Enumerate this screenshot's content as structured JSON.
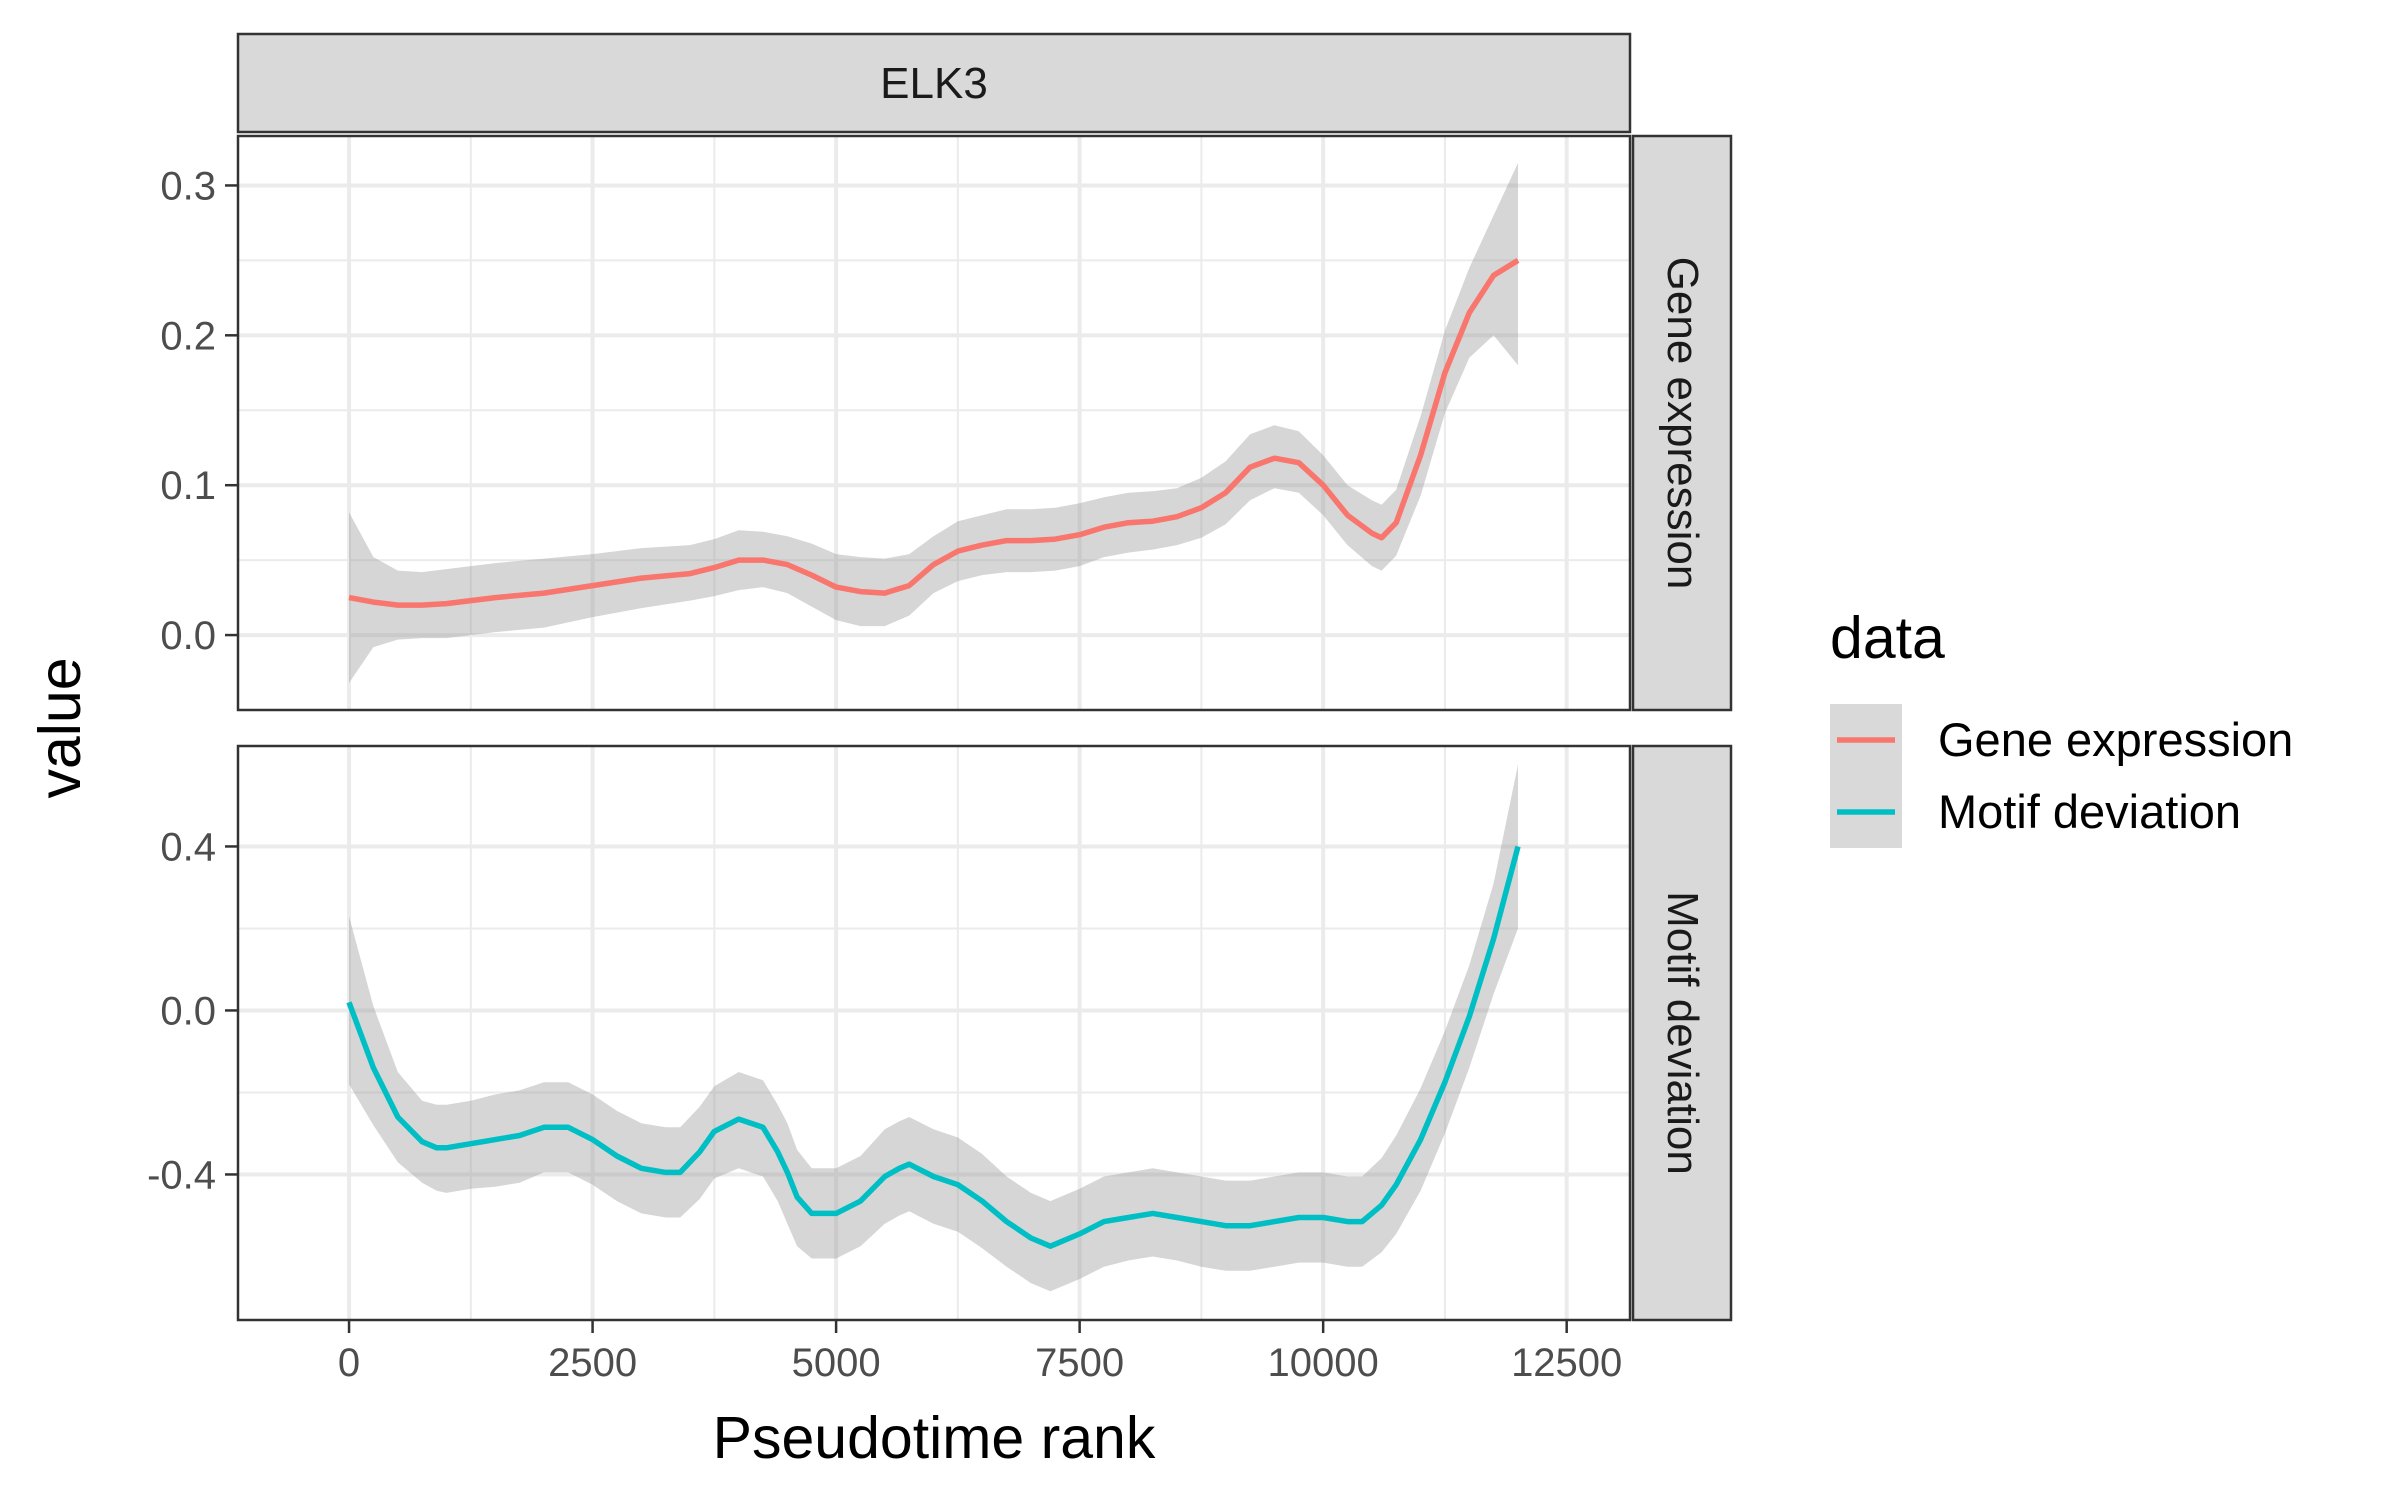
{
  "chart_data": {
    "type": "line",
    "title": "ELK3",
    "xlabel": "Pseudotime rank",
    "ylabel": "value",
    "xlim": [
      -1140,
      13150
    ],
    "xticks": [
      0,
      2500,
      5000,
      7500,
      10000,
      12500
    ],
    "xtick_labels": [
      "0",
      "2500",
      "5000",
      "7500",
      "10000",
      "12500"
    ],
    "grid": true,
    "legend": {
      "title": "data",
      "position": "right",
      "entries": [
        {
          "label": "Gene expression",
          "color": "#F8766D"
        },
        {
          "label": "Motif deviation",
          "color": "#00BFC4"
        }
      ]
    },
    "panels": [
      {
        "strip_label": "Gene expression",
        "color": "#F8766D",
        "ylim": [
          -0.05,
          0.333
        ],
        "yticks": [
          0.0,
          0.1,
          0.2,
          0.3
        ],
        "ytick_labels": [
          "0.0",
          "0.1",
          "0.2",
          "0.3"
        ],
        "series": {
          "name": "Gene expression",
          "x": [
            0,
            250,
            500,
            750,
            1000,
            1500,
            2000,
            2500,
            3000,
            3500,
            3750,
            4000,
            4250,
            4500,
            4750,
            5000,
            5250,
            5500,
            5750,
            6000,
            6250,
            6500,
            6750,
            7000,
            7250,
            7500,
            7750,
            8000,
            8250,
            8500,
            8750,
            9000,
            9250,
            9500,
            9750,
            10000,
            10250,
            10500,
            10600,
            10750,
            11000,
            11250,
            11500,
            11750,
            12000
          ],
          "y": [
            0.025,
            0.022,
            0.02,
            0.02,
            0.021,
            0.025,
            0.028,
            0.033,
            0.038,
            0.041,
            0.045,
            0.05,
            0.05,
            0.047,
            0.04,
            0.032,
            0.029,
            0.028,
            0.033,
            0.047,
            0.056,
            0.06,
            0.063,
            0.063,
            0.064,
            0.067,
            0.072,
            0.075,
            0.076,
            0.079,
            0.085,
            0.095,
            0.112,
            0.118,
            0.115,
            0.1,
            0.08,
            0.068,
            0.065,
            0.075,
            0.12,
            0.175,
            0.215,
            0.24,
            0.25
          ],
          "ci_lower": [
            -0.032,
            -0.008,
            -0.003,
            -0.002,
            -0.002,
            0.002,
            0.005,
            0.012,
            0.018,
            0.023,
            0.026,
            0.03,
            0.032,
            0.028,
            0.019,
            0.01,
            0.006,
            0.006,
            0.013,
            0.028,
            0.036,
            0.04,
            0.042,
            0.042,
            0.043,
            0.046,
            0.052,
            0.055,
            0.057,
            0.06,
            0.065,
            0.074,
            0.09,
            0.098,
            0.095,
            0.08,
            0.06,
            0.046,
            0.043,
            0.053,
            0.093,
            0.148,
            0.185,
            0.2,
            0.18
          ],
          "ci_upper": [
            0.082,
            0.052,
            0.043,
            0.042,
            0.044,
            0.048,
            0.051,
            0.054,
            0.058,
            0.06,
            0.064,
            0.07,
            0.069,
            0.066,
            0.061,
            0.054,
            0.052,
            0.051,
            0.054,
            0.066,
            0.076,
            0.08,
            0.084,
            0.084,
            0.085,
            0.088,
            0.092,
            0.095,
            0.096,
            0.098,
            0.105,
            0.116,
            0.134,
            0.14,
            0.136,
            0.12,
            0.1,
            0.09,
            0.087,
            0.097,
            0.146,
            0.203,
            0.245,
            0.28,
            0.315
          ]
        }
      },
      {
        "strip_label": "Motif deviation",
        "color": "#00BFC4",
        "ylim": [
          -0.755,
          0.645
        ],
        "yticks": [
          -0.4,
          0.0,
          0.4
        ],
        "ytick_labels": [
          "-0.4",
          "0.0",
          "0.4"
        ],
        "series": {
          "name": "Motif deviation",
          "x": [
            0,
            250,
            500,
            750,
            900,
            1000,
            1250,
            1500,
            1750,
            2000,
            2250,
            2500,
            2750,
            3000,
            3250,
            3400,
            3600,
            3750,
            4000,
            4250,
            4400,
            4500,
            4600,
            4750,
            5000,
            5250,
            5500,
            5650,
            5750,
            6000,
            6250,
            6500,
            6750,
            7000,
            7200,
            7500,
            7750,
            8000,
            8250,
            8500,
            8750,
            9000,
            9250,
            9500,
            9750,
            10000,
            10250,
            10400,
            10600,
            10750,
            11000,
            11250,
            11500,
            11750,
            12000
          ],
          "y": [
            0.02,
            -0.14,
            -0.26,
            -0.32,
            -0.335,
            -0.335,
            -0.325,
            -0.315,
            -0.305,
            -0.285,
            -0.285,
            -0.315,
            -0.355,
            -0.385,
            -0.395,
            -0.395,
            -0.345,
            -0.295,
            -0.265,
            -0.285,
            -0.345,
            -0.395,
            -0.455,
            -0.495,
            -0.495,
            -0.465,
            -0.405,
            -0.385,
            -0.375,
            -0.405,
            -0.425,
            -0.465,
            -0.515,
            -0.555,
            -0.575,
            -0.545,
            -0.515,
            -0.505,
            -0.495,
            -0.505,
            -0.515,
            -0.525,
            -0.525,
            -0.515,
            -0.505,
            -0.505,
            -0.515,
            -0.515,
            -0.475,
            -0.425,
            -0.315,
            -0.175,
            -0.015,
            0.175,
            0.4
          ],
          "ci_lower": [
            -0.18,
            -0.28,
            -0.37,
            -0.42,
            -0.44,
            -0.445,
            -0.435,
            -0.43,
            -0.42,
            -0.395,
            -0.395,
            -0.425,
            -0.465,
            -0.495,
            -0.505,
            -0.505,
            -0.46,
            -0.41,
            -0.385,
            -0.405,
            -0.465,
            -0.52,
            -0.575,
            -0.605,
            -0.605,
            -0.575,
            -0.52,
            -0.5,
            -0.49,
            -0.52,
            -0.54,
            -0.58,
            -0.625,
            -0.665,
            -0.685,
            -0.655,
            -0.625,
            -0.61,
            -0.6,
            -0.61,
            -0.625,
            -0.635,
            -0.635,
            -0.625,
            -0.615,
            -0.615,
            -0.625,
            -0.625,
            -0.59,
            -0.545,
            -0.44,
            -0.3,
            -0.14,
            0.04,
            0.2
          ],
          "ci_upper": [
            0.23,
            0.01,
            -0.15,
            -0.22,
            -0.23,
            -0.23,
            -0.22,
            -0.205,
            -0.195,
            -0.175,
            -0.175,
            -0.205,
            -0.245,
            -0.275,
            -0.285,
            -0.285,
            -0.235,
            -0.185,
            -0.15,
            -0.17,
            -0.23,
            -0.275,
            -0.34,
            -0.385,
            -0.385,
            -0.355,
            -0.29,
            -0.27,
            -0.26,
            -0.29,
            -0.31,
            -0.35,
            -0.405,
            -0.445,
            -0.465,
            -0.435,
            -0.405,
            -0.395,
            -0.385,
            -0.395,
            -0.405,
            -0.415,
            -0.415,
            -0.405,
            -0.395,
            -0.395,
            -0.405,
            -0.405,
            -0.36,
            -0.305,
            -0.19,
            -0.05,
            0.11,
            0.31,
            0.6
          ]
        }
      }
    ]
  }
}
